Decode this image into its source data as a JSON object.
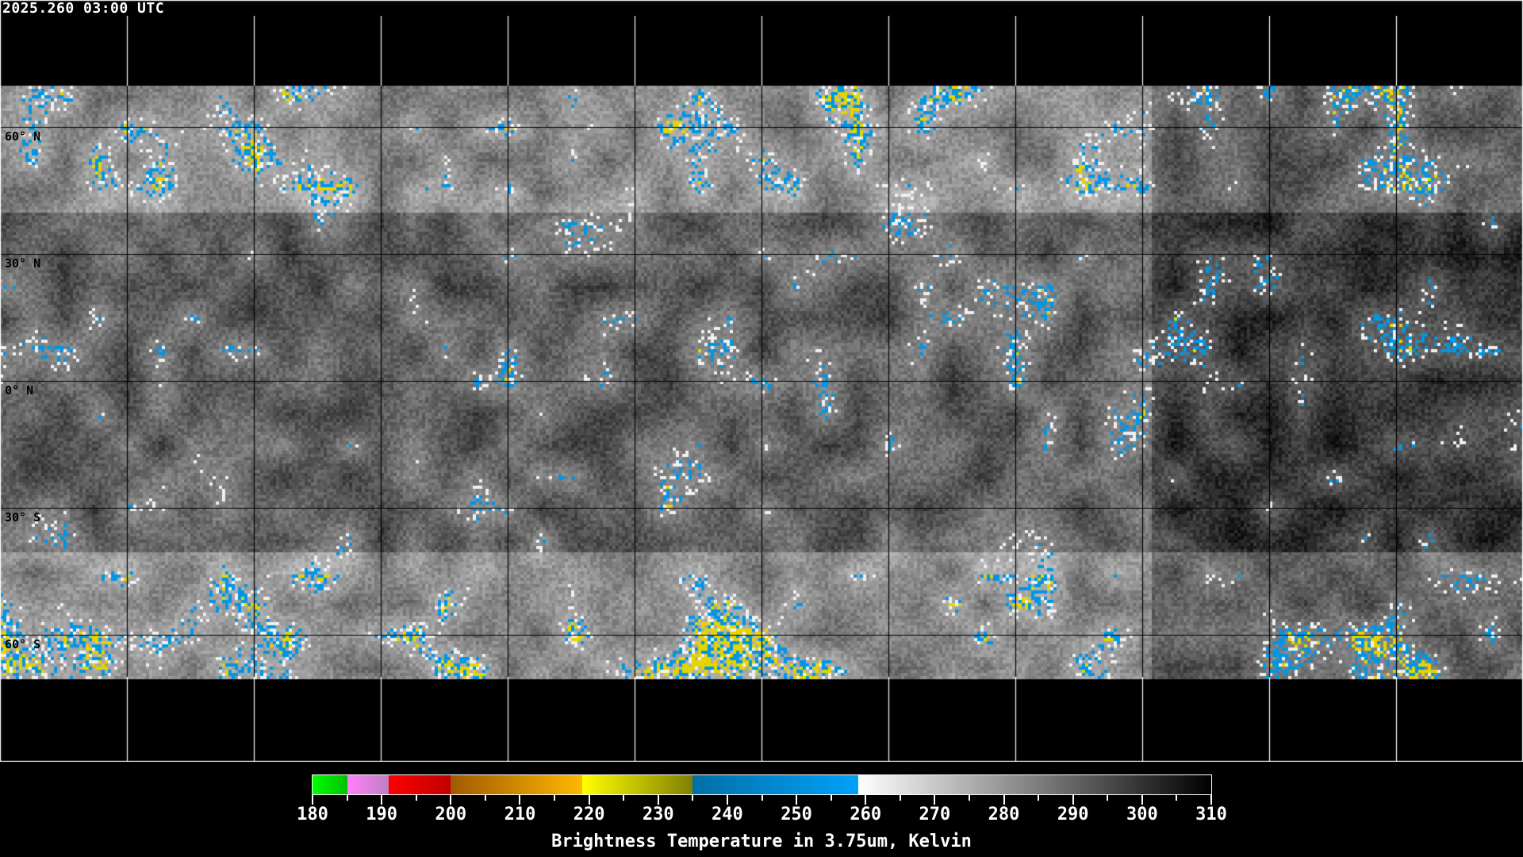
{
  "header": {
    "timestamp": "2025.260 03:00 UTC"
  },
  "map": {
    "projection": "equirectangular",
    "latitude_labels": [
      "60° N",
      "30° N",
      "0° N",
      "30° S",
      "60° S"
    ],
    "latitudes": [
      60,
      30,
      0,
      -30,
      -60
    ],
    "longitude_grid_step_deg": 30
  },
  "colorbar": {
    "title": "Brightness Temperature in 3.75um, Kelvin",
    "min": 180,
    "max": 310,
    "tick_labels": [
      "180",
      "190",
      "200",
      "210",
      "220",
      "230",
      "240",
      "250",
      "260",
      "270",
      "280",
      "290",
      "300",
      "310"
    ],
    "segments": [
      {
        "from": 180,
        "to": 185,
        "colors": [
          "#00ff00",
          "#00c000"
        ]
      },
      {
        "from": 185,
        "to": 191,
        "colors": [
          "#ff80ff",
          "#c080c0"
        ]
      },
      {
        "from": 191,
        "to": 200,
        "colors": [
          "#ff0000",
          "#c00000"
        ]
      },
      {
        "from": 200,
        "to": 219,
        "colors": [
          "#a05a00",
          "#ffb800"
        ]
      },
      {
        "from": 219,
        "to": 235,
        "colors": [
          "#ffff00",
          "#808000"
        ]
      },
      {
        "from": 235,
        "to": 259,
        "colors": [
          "#0070a8",
          "#00a0f8"
        ]
      },
      {
        "from": 259,
        "to": 310,
        "colors": [
          "#ffffff",
          "#000000"
        ]
      }
    ]
  }
}
